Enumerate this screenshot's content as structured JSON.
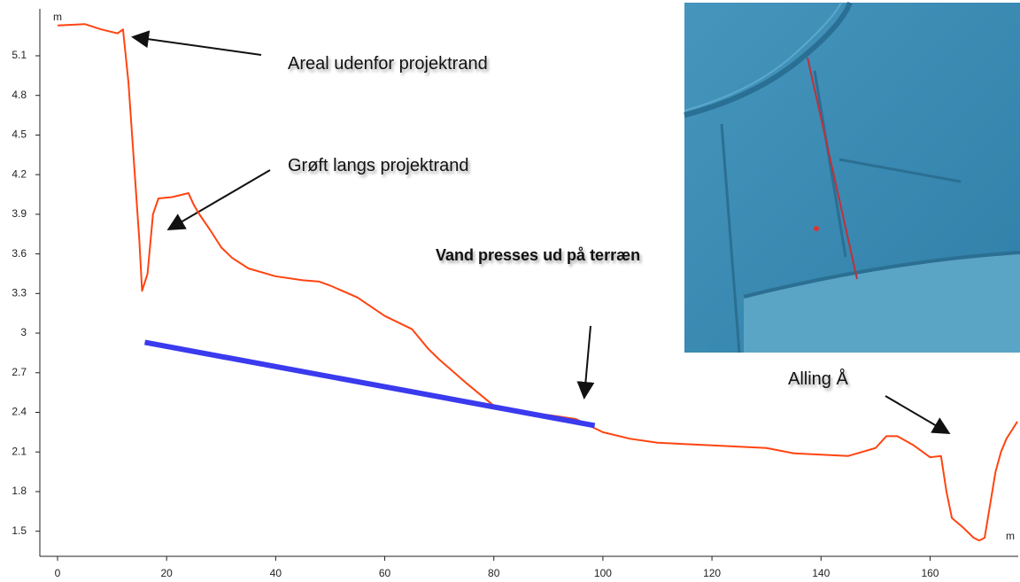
{
  "chart_data": {
    "type": "line",
    "y_unit": "m",
    "x_unit": "m",
    "x": [
      0,
      5,
      8,
      11,
      12,
      13,
      14,
      15,
      15.5,
      16.5,
      17.5,
      18.5,
      21,
      24,
      25,
      26,
      28,
      30,
      32,
      35,
      40,
      45,
      48,
      50,
      55,
      60,
      65,
      68,
      70,
      75,
      80,
      85,
      90,
      95,
      100,
      105,
      110,
      120,
      130,
      135,
      140,
      145,
      150,
      152,
      154,
      157,
      160,
      162,
      163,
      164,
      166,
      168,
      169,
      170,
      171,
      172,
      173,
      174,
      176
    ],
    "series": [
      {
        "color": "#ff4411",
        "values": [
          5.33,
          5.34,
          5.3,
          5.27,
          5.3,
          4.9,
          4.3,
          3.7,
          3.32,
          3.45,
          3.9,
          4.02,
          4.03,
          4.06,
          3.97,
          3.9,
          3.78,
          3.65,
          3.57,
          3.49,
          3.43,
          3.4,
          3.39,
          3.36,
          3.27,
          3.13,
          3.03,
          2.88,
          2.8,
          2.62,
          2.45,
          2.4,
          2.38,
          2.35,
          2.25,
          2.2,
          2.17,
          2.15,
          2.13,
          2.09,
          2.08,
          2.07,
          2.13,
          2.22,
          2.22,
          2.15,
          2.06,
          2.07,
          1.8,
          1.6,
          1.53,
          1.45,
          1.43,
          1.45,
          1.7,
          1.95,
          2.1,
          2.2,
          2.33
        ]
      }
    ],
    "trend_line": {
      "color": "#3a3aee",
      "x": [
        16,
        98.5
      ],
      "values": [
        2.93,
        2.3
      ]
    },
    "xlim": [
      0,
      176
    ],
    "xticks": [
      0,
      20,
      40,
      60,
      80,
      100,
      120,
      140,
      160
    ],
    "ylim": [
      1.31,
      5.45
    ],
    "yticks": [
      1.5,
      1.8,
      2.1,
      2.4,
      2.7,
      3,
      3.3,
      3.6,
      3.9,
      4.2,
      4.5,
      4.8,
      5.1
    ],
    "annotations": [
      "Areal udenfor projektrand",
      "Grøft langs projektrand",
      "Vand presses ud på terræn",
      "Alling Å"
    ]
  }
}
